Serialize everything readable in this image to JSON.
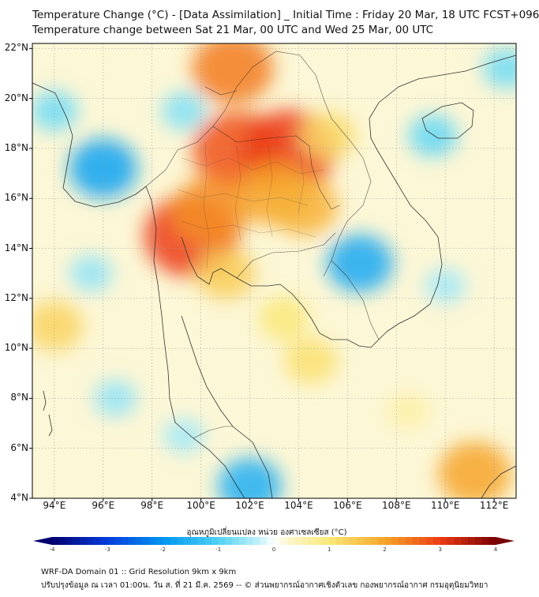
{
  "header": {
    "title_line1": "Temperature Change (°C) - [Data Assimilation] _ Initial Time : Friday 20 Mar, 18 UTC FCST+096",
    "title_line2": "Temperature change between Sat 21 Mar, 00 UTC and Wed 25 Mar, 00 UTC"
  },
  "map": {
    "lat_labels": [
      "22°N",
      "20°N",
      "18°N",
      "16°N",
      "14°N",
      "12°N",
      "10°N",
      "8°N",
      "6°N",
      "4°N"
    ],
    "lon_labels": [
      "94°E",
      "96°E",
      "98°E",
      "100°E",
      "102°E",
      "104°E",
      "106°E",
      "108°E",
      "110°E",
      "112°E"
    ],
    "lat_range": [
      4,
      22.2
    ],
    "lon_range": [
      93.1,
      112.9
    ],
    "gridlines": true,
    "anomalies": [
      {
        "lon": 101.3,
        "lat": 21.2,
        "value": 2.4
      },
      {
        "lon": 101.5,
        "lat": 17.9,
        "value": 2.8
      },
      {
        "lon": 103.6,
        "lat": 17.9,
        "value": 3.0
      },
      {
        "lon": 99.6,
        "lat": 14.5,
        "value": 3.0
      },
      {
        "lon": 100.4,
        "lat": 15.5,
        "value": 2.2
      },
      {
        "lon": 103.0,
        "lat": 16.2,
        "value": 2.0
      },
      {
        "lon": 104.2,
        "lat": 15.7,
        "value": 1.8
      },
      {
        "lon": 101.0,
        "lat": 13.0,
        "value": 1.4
      },
      {
        "lon": 103.4,
        "lat": 11.2,
        "value": 1.0
      },
      {
        "lon": 105.2,
        "lat": 18.5,
        "value": 1.2
      },
      {
        "lon": 94.0,
        "lat": 10.9,
        "value": 1.3
      },
      {
        "lon": 111.2,
        "lat": 5.0,
        "value": 2.0
      },
      {
        "lon": 108.5,
        "lat": 7.5,
        "value": 0.6
      },
      {
        "lon": 104.5,
        "lat": 9.5,
        "value": 1.1
      },
      {
        "lon": 96.0,
        "lat": 17.2,
        "value": -1.8
      },
      {
        "lon": 106.5,
        "lat": 13.4,
        "value": -1.7
      },
      {
        "lon": 102.0,
        "lat": 4.5,
        "value": -1.6
      },
      {
        "lon": 109.5,
        "lat": 18.5,
        "value": -0.9
      },
      {
        "lon": 94.0,
        "lat": 19.5,
        "value": -0.8
      },
      {
        "lon": 112.5,
        "lat": 21.2,
        "value": -0.8
      },
      {
        "lon": 96.5,
        "lat": 8.0,
        "value": -0.6
      },
      {
        "lon": 95.5,
        "lat": 13.0,
        "value": -0.6
      },
      {
        "lon": 99.3,
        "lat": 19.5,
        "value": -0.7
      },
      {
        "lon": 110.0,
        "lat": 12.5,
        "value": -0.5
      },
      {
        "lon": 99.3,
        "lat": 6.5,
        "value": -0.5
      }
    ]
  },
  "colorbar": {
    "label": "อุณหภูมิเปลี่ยนแปลง หน่วย องศาเซลเซียส (°C)",
    "ticks": [
      "-4",
      "-3",
      "-2",
      "-1",
      "0",
      "1",
      "2",
      "3",
      "4"
    ],
    "min": -4,
    "max": 4
  },
  "footer": {
    "line1": "WRF-DA Domain 01 :: Grid Resolution 9km x 9km",
    "line2": "ปรับปรุงข้อมูล ณ เวลา 01:00น. วัน ส. ที่ 21 มี.ค. 2569 -- © ส่วนพยากรณ์อากาศเชิงตัวเลข กองพยากรณ์อากาศ กรมอุตุนิยมวิทยา"
  }
}
